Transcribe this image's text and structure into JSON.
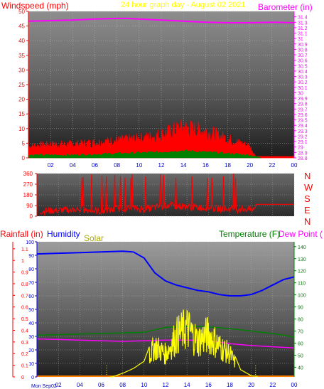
{
  "chart_data": [
    {
      "type": "line",
      "title": "24 hour graph day - August 02 2021",
      "left_axis_label": "Windspeed (mph)",
      "right_axis_label": "Barometer (in)",
      "x_ticks": [
        "02",
        "04",
        "06",
        "08",
        "10",
        "12",
        "14",
        "16",
        "18",
        "20",
        "22",
        "00"
      ],
      "left_ticks": [
        0,
        5,
        10,
        15,
        20,
        25,
        30,
        35,
        40,
        45,
        50
      ],
      "left_range": [
        0,
        50
      ],
      "right_ticks": [
        28.8,
        28.9,
        29,
        29.1,
        29.2,
        29.3,
        29.4,
        29.5,
        29.6,
        29.7,
        29.8,
        29.9,
        30,
        30.1,
        30.2,
        30.3,
        30.4,
        30.5,
        30.6,
        30.7,
        30.8,
        30.9,
        31,
        31.1,
        31.2,
        31.3,
        31.4
      ],
      "right_range": [
        28.8,
        31.5
      ],
      "series": [
        {
          "color": "#ff00ff",
          "axis": "right",
          "x": [
            0,
            2,
            4,
            6,
            8,
            9,
            10,
            12,
            14,
            16,
            18,
            20,
            22,
            24
          ],
          "values": [
            31.32,
            31.33,
            31.34,
            31.36,
            31.37,
            31.37,
            31.36,
            31.34,
            31.32,
            31.3,
            31.29,
            31.29,
            31.3,
            31.29
          ]
        },
        {
          "color": "#ff0000",
          "axis": "left",
          "x": [
            0,
            2,
            4,
            6,
            8,
            10,
            12,
            14,
            16,
            18,
            20,
            20.5,
            21,
            24
          ],
          "values": [
            3,
            3.5,
            3.5,
            4,
            4.5,
            5,
            6,
            8,
            7,
            5,
            3,
            0.5,
            0.5,
            0.5
          ]
        },
        {
          "color": "#008000",
          "axis": "left",
          "x": [
            0,
            4,
            8,
            12,
            14,
            16,
            18,
            20,
            21
          ],
          "values": [
            1,
            1,
            1.5,
            2,
            2.5,
            2,
            1.5,
            1,
            0
          ]
        }
      ]
    },
    {
      "type": "scatter",
      "title": "",
      "left_ticks": [
        0,
        90,
        180,
        270,
        360
      ],
      "left_range": [
        0,
        360
      ],
      "direction_labels": [
        "N",
        "W",
        "S",
        "E",
        "N"
      ],
      "x_ticks": [
        "02",
        "04",
        "06",
        "08",
        "10",
        "12",
        "14",
        "16",
        "18",
        "20",
        "22",
        "00"
      ],
      "series": [
        {
          "color": "#ff0000",
          "x": [
            0,
            2,
            4,
            6,
            8,
            10,
            12,
            14,
            16,
            18,
            20,
            22,
            24
          ],
          "values": [
            40,
            50,
            60,
            40,
            70,
            60,
            90,
            80,
            70,
            60,
            60,
            100,
            100
          ]
        }
      ]
    },
    {
      "type": "line",
      "left_axis_label": "Rainfall (in)",
      "humidity_label": "Humidity",
      "solar_label": "Solar",
      "right_axis_label": "Temperature (F)",
      "dewpoint_label": "Dew Point (",
      "date_label": "Mon Sep02",
      "x_ticks": [
        "02",
        "04",
        "06",
        "08",
        "10",
        "12",
        "14",
        "16",
        "18",
        "20",
        "22",
        "00"
      ],
      "rain_ticks": [
        0,
        0.1,
        0.2,
        0.3,
        0.4,
        0.5,
        0.6,
        0.7,
        0.8,
        0.9,
        1,
        1.1
      ],
      "humidity_ticks": [
        0,
        10,
        20,
        30,
        40,
        50,
        60,
        70,
        80,
        90,
        100
      ],
      "humidity_range": [
        0,
        100
      ],
      "temp_ticks": [
        40,
        50,
        60,
        70,
        80,
        90,
        100,
        110,
        120,
        130,
        140
      ],
      "temp_range": [
        32,
        144
      ],
      "series": [
        {
          "name": "Humidity",
          "color": "#0000ff",
          "axis": "humidity",
          "x": [
            0,
            2,
            4,
            6,
            8,
            9,
            10,
            11,
            12,
            13,
            14,
            15,
            16,
            17,
            18,
            19,
            20,
            21,
            22,
            23,
            24
          ],
          "values": [
            91,
            91.5,
            92,
            92.5,
            93,
            92.5,
            88,
            77,
            71,
            68,
            66,
            64,
            63,
            61,
            60,
            60,
            61,
            64,
            68,
            72,
            74
          ]
        },
        {
          "name": "Temperature",
          "color": "#ff00ff",
          "axis": "temp",
          "x": [
            0,
            2,
            4,
            6,
            8,
            10,
            12,
            14,
            16,
            18,
            20,
            22,
            24
          ],
          "values": [
            63.5,
            63,
            62.5,
            62,
            61.5,
            62,
            62.5,
            62.5,
            62,
            59.5,
            58,
            57,
            56
          ]
        },
        {
          "name": "Dew Point",
          "color": "#008000",
          "axis": "temp",
          "x": [
            0,
            2,
            4,
            6,
            8,
            10,
            11,
            12,
            14,
            16,
            18,
            20,
            22,
            24
          ],
          "values": [
            66.5,
            67,
            67.5,
            68,
            68.5,
            69,
            71,
            73,
            74,
            73.5,
            72,
            70,
            68,
            65
          ]
        },
        {
          "name": "Solar",
          "color": "#ffff00",
          "axis": "temp",
          "x": [
            0,
            7,
            8,
            9,
            10,
            11,
            12,
            13,
            14,
            15,
            16,
            17,
            18,
            19,
            20,
            21,
            24
          ],
          "values": [
            32,
            32,
            35,
            39,
            45,
            70,
            60,
            82,
            92,
            76,
            84,
            70,
            60,
            38,
            33,
            32,
            32
          ]
        },
        {
          "name": "Rainfall",
          "color": "#ff8000",
          "axis": "rain",
          "x": [
            0,
            24
          ],
          "values": [
            0,
            0
          ]
        }
      ]
    }
  ]
}
